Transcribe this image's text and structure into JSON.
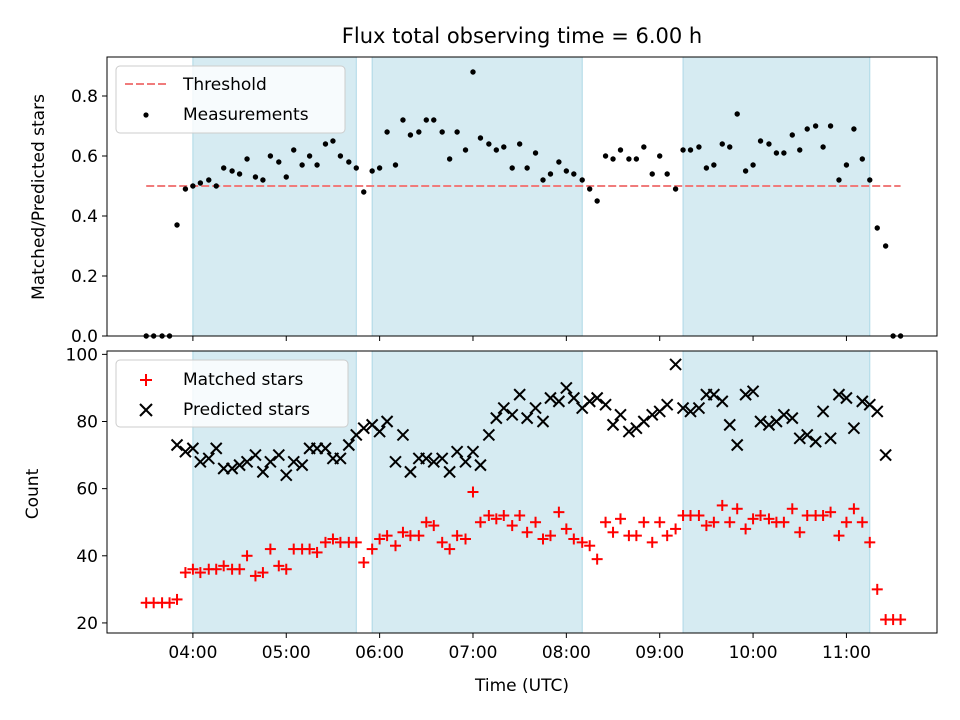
{
  "chart_data": [
    {
      "type": "scatter",
      "title": "Flux total observing time = 6.00 h",
      "xlabel": "",
      "ylabel": "Matched/Predicted stars",
      "xlim": [
        3.08,
        11.97
      ],
      "ylim": [
        0,
        0.93
      ],
      "yticks": [
        0.0,
        0.2,
        0.4,
        0.6,
        0.8
      ],
      "ytick_labels": [
        "0.0",
        "0.2",
        "0.4",
        "0.6",
        "0.8"
      ],
      "threshold": {
        "name": "Threshold",
        "y": 0.5,
        "x": [
          3.5,
          11.58
        ],
        "color": "#f07b7b",
        "style": "dashed"
      },
      "legend": {
        "position": "top-left",
        "entries": [
          "Threshold",
          "Measurements"
        ]
      },
      "series": [
        {
          "name": "Measurements",
          "marker": "dot",
          "color": "#000000",
          "x": [
            3.5,
            3.58,
            3.67,
            3.75,
            3.83,
            3.92,
            4.0,
            4.08,
            4.17,
            4.25,
            4.33,
            4.42,
            4.5,
            4.58,
            4.67,
            4.75,
            4.83,
            4.92,
            5.0,
            5.08,
            5.17,
            5.25,
            5.33,
            5.42,
            5.5,
            5.58,
            5.67,
            5.75,
            5.83,
            5.92,
            6.0,
            6.08,
            6.17,
            6.25,
            6.33,
            6.42,
            6.5,
            6.58,
            6.67,
            6.75,
            6.83,
            6.92,
            7.0,
            7.08,
            7.17,
            7.25,
            7.33,
            7.42,
            7.5,
            7.58,
            7.67,
            7.75,
            7.83,
            7.92,
            8.0,
            8.08,
            8.17,
            8.25,
            8.33,
            8.42,
            8.5,
            8.58,
            8.67,
            8.75,
            8.83,
            8.92,
            9.0,
            9.08,
            9.17,
            9.25,
            9.33,
            9.42,
            9.5,
            9.58,
            9.67,
            9.75,
            9.83,
            9.92,
            10.0,
            10.08,
            10.17,
            10.25,
            10.33,
            10.42,
            10.5,
            10.58,
            10.67,
            10.75,
            10.83,
            10.92,
            11.0,
            11.08,
            11.17,
            11.25,
            11.33,
            11.42,
            11.5,
            11.58
          ],
          "y": [
            0.0,
            0.0,
            0.0,
            0.0,
            0.37,
            0.49,
            0.5,
            0.51,
            0.52,
            0.5,
            0.56,
            0.55,
            0.54,
            0.59,
            0.53,
            0.52,
            0.6,
            0.58,
            0.53,
            0.62,
            0.57,
            0.6,
            0.57,
            0.64,
            0.65,
            0.6,
            0.58,
            0.56,
            0.48,
            0.55,
            0.56,
            0.68,
            0.57,
            0.72,
            0.67,
            0.68,
            0.72,
            0.72,
            0.68,
            0.59,
            0.68,
            0.62,
            0.88,
            0.66,
            0.64,
            0.62,
            0.63,
            0.56,
            0.64,
            0.56,
            0.61,
            0.52,
            0.54,
            0.58,
            0.55,
            0.54,
            0.52,
            0.49,
            0.45,
            0.6,
            0.59,
            0.62,
            0.59,
            0.59,
            0.63,
            0.54,
            0.6,
            0.54,
            0.49,
            0.62,
            0.62,
            0.63,
            0.56,
            0.57,
            0.64,
            0.63,
            0.74,
            0.55,
            0.57,
            0.65,
            0.64,
            0.61,
            0.61,
            0.67,
            0.62,
            0.69,
            0.7,
            0.63,
            0.7,
            0.52,
            0.57,
            0.69,
            0.59,
            0.52,
            0.36,
            0.3,
            0.0,
            0.0
          ]
        }
      ]
    },
    {
      "type": "scatter",
      "title": "",
      "xlabel": "Time (UTC)",
      "ylabel": "Count",
      "xlim": [
        3.08,
        11.97
      ],
      "ylim": [
        17,
        101
      ],
      "yticks": [
        20,
        40,
        60,
        80,
        100
      ],
      "ytick_labels": [
        "20",
        "40",
        "60",
        "80",
        "100"
      ],
      "xticks": [
        4,
        5,
        6,
        7,
        8,
        9,
        10,
        11
      ],
      "xtick_labels": [
        "04:00",
        "05:00",
        "06:00",
        "07:00",
        "08:00",
        "09:00",
        "10:00",
        "11:00"
      ],
      "legend": {
        "position": "top-left",
        "entries": [
          "Matched stars",
          "Predicted stars"
        ]
      },
      "series": [
        {
          "name": "Matched stars",
          "marker": "plus",
          "color": "#ff0000",
          "x": [
            3.5,
            3.58,
            3.67,
            3.75,
            3.83,
            3.92,
            4.0,
            4.08,
            4.17,
            4.25,
            4.33,
            4.42,
            4.5,
            4.58,
            4.67,
            4.75,
            4.83,
            4.92,
            5.0,
            5.08,
            5.17,
            5.25,
            5.33,
            5.42,
            5.5,
            5.58,
            5.67,
            5.75,
            5.83,
            5.92,
            6.0,
            6.08,
            6.17,
            6.25,
            6.33,
            6.42,
            6.5,
            6.58,
            6.67,
            6.75,
            6.83,
            6.92,
            7.0,
            7.08,
            7.17,
            7.25,
            7.33,
            7.42,
            7.5,
            7.58,
            7.67,
            7.75,
            7.83,
            7.92,
            8.0,
            8.08,
            8.17,
            8.25,
            8.33,
            8.42,
            8.5,
            8.58,
            8.67,
            8.75,
            8.83,
            8.92,
            9.0,
            9.08,
            9.17,
            9.25,
            9.33,
            9.42,
            9.5,
            9.58,
            9.67,
            9.75,
            9.83,
            9.92,
            10.0,
            10.08,
            10.17,
            10.25,
            10.33,
            10.42,
            10.5,
            10.58,
            10.67,
            10.75,
            10.83,
            10.92,
            11.0,
            11.08,
            11.17,
            11.25,
            11.33,
            11.42,
            11.5,
            11.58
          ],
          "y": [
            26,
            26,
            26,
            26,
            27,
            35,
            36,
            35,
            36,
            36,
            37,
            36,
            36,
            40,
            34,
            35,
            42,
            37,
            36,
            42,
            42,
            42,
            41,
            44,
            45,
            44,
            44,
            44,
            38,
            42,
            45,
            46,
            43,
            47,
            46,
            46,
            50,
            49,
            44,
            42,
            46,
            45,
            59,
            50,
            52,
            51,
            52,
            49,
            52,
            47,
            50,
            45,
            46,
            53,
            48,
            45,
            44,
            43,
            39,
            50,
            47,
            51,
            46,
            46,
            50,
            44,
            50,
            46,
            48,
            52,
            52,
            52,
            49,
            50,
            55,
            50,
            54,
            48,
            51,
            52,
            51,
            50,
            50,
            54,
            47,
            52,
            52,
            52,
            53,
            46,
            50,
            54,
            50,
            44,
            30,
            21,
            21,
            21
          ]
        },
        {
          "name": "Predicted stars",
          "marker": "x",
          "color": "#000000",
          "x": [
            3.83,
            3.92,
            4.0,
            4.08,
            4.17,
            4.25,
            4.33,
            4.42,
            4.5,
            4.58,
            4.67,
            4.75,
            4.83,
            4.92,
            5.0,
            5.08,
            5.17,
            5.25,
            5.33,
            5.42,
            5.5,
            5.58,
            5.67,
            5.75,
            5.83,
            5.92,
            6.0,
            6.08,
            6.17,
            6.25,
            6.33,
            6.42,
            6.5,
            6.58,
            6.67,
            6.75,
            6.83,
            6.92,
            7.0,
            7.08,
            7.17,
            7.25,
            7.33,
            7.42,
            7.5,
            7.58,
            7.67,
            7.75,
            7.83,
            7.92,
            8.0,
            8.08,
            8.17,
            8.25,
            8.33,
            8.42,
            8.5,
            8.58,
            8.67,
            8.75,
            8.83,
            8.92,
            9.0,
            9.08,
            9.17,
            9.25,
            9.33,
            9.42,
            9.5,
            9.58,
            9.67,
            9.75,
            9.83,
            9.92,
            10.0,
            10.08,
            10.17,
            10.25,
            10.33,
            10.42,
            10.5,
            10.58,
            10.67,
            10.75,
            10.83,
            10.92,
            11.0,
            11.08,
            11.17,
            11.25,
            11.33,
            11.42
          ],
          "y": [
            73,
            71,
            72,
            68,
            69,
            72,
            66,
            66,
            67,
            68,
            70,
            65,
            68,
            70,
            64,
            68,
            67,
            72,
            72,
            72,
            69,
            69,
            73,
            76,
            78,
            79,
            77,
            80,
            68,
            76,
            65,
            69,
            69,
            68,
            69,
            65,
            71,
            68,
            71,
            67,
            76,
            81,
            84,
            82,
            88,
            81,
            84,
            80,
            87,
            86,
            90,
            87,
            84,
            86,
            87,
            85,
            79,
            82,
            77,
            78,
            80,
            82,
            83,
            85,
            97,
            84,
            83,
            84,
            88,
            88,
            86,
            79,
            73,
            88,
            89,
            80,
            79,
            80,
            82,
            81,
            75,
            76,
            74,
            83,
            75,
            88,
            87,
            78,
            86,
            85,
            83,
            70
          ]
        }
      ]
    }
  ],
  "shaded_regions": [
    [
      4.0,
      5.75
    ],
    [
      5.92,
      8.17
    ],
    [
      9.25,
      11.25
    ]
  ],
  "colors": {
    "shade": "#add8e6",
    "matched": "#ff0000",
    "predicted": "#000000",
    "threshold": "#f07b7b"
  }
}
